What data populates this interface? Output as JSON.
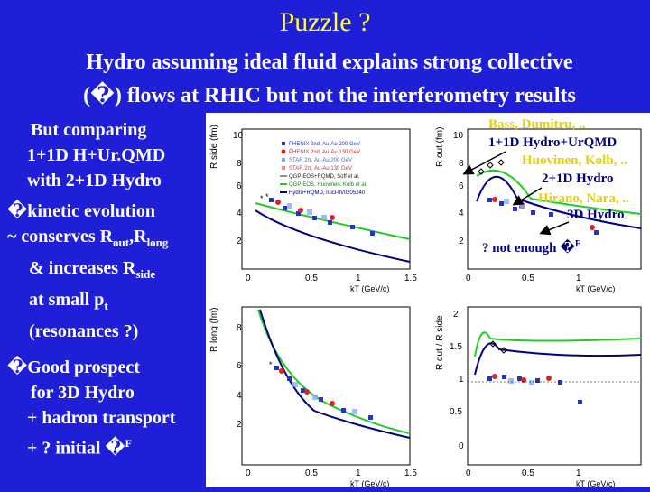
{
  "slide": {
    "title": "Puzzle ?",
    "subtitle_line1": "Hydro assuming ideal fluid explains strong collective",
    "subtitle_line2": "(�) flows at RHIC but not the interferometry results",
    "left": {
      "l1": "But comparing",
      "l2": "1+1D H+Ur.QMD",
      "l3": "with 2+1D Hydro",
      "l4": "�kinetic evolution",
      "l5a": "~ conserves R",
      "l5b": "out",
      "l5c": ",R",
      "l5d": "long",
      "l6a": "& increases R",
      "l6b": "side",
      "l7a": "at small p",
      "l7b": "t",
      "l8": "(resonances ?)",
      "l9": "�Good prospect",
      "l10": "for 3D Hydro",
      "l11": "+ hadron transport",
      "l12": "+ ? initial �",
      "l12sup": "F"
    },
    "annotations": {
      "a1": "Bass, Dumitru, ..",
      "a2": "1+1D Hydro+UrQMD",
      "a3": "Huovinen, Kolb, ..",
      "a4": "2+1D Hydro",
      "a5": "Hirano, Nara, ..",
      "a6": "3D Hydro",
      "a7": "? not enough �",
      "a7sup": "F"
    },
    "panels": {
      "ylabel_side": "R side (fm)",
      "ylabel_out": "R out (fm)",
      "ylabel_long": "R long (fm)",
      "ylabel_ratio": "R out / R side",
      "xlabel": "kT (GeV/c)",
      "legend": [
        "PHENIX 2nd, Au-Au 200 GeV",
        "PHENIX 2nd, Au-Au 130 GeV",
        "STAR 2π, Au-Au 200 GeV",
        "STAR 2π, Au-Au 130 GeV",
        "QGP-EOS+RQMD, Soff et al.",
        "QGP-EOS, Huovinen, Kolb et al.",
        "Hydro+RQMD, nucl-th/0205240"
      ],
      "legend_colors": [
        "#2233cc",
        "#dd2222",
        "#88aaff",
        "#ff8888",
        "#222222",
        "#22cc22",
        "#000080"
      ]
    }
  }
}
